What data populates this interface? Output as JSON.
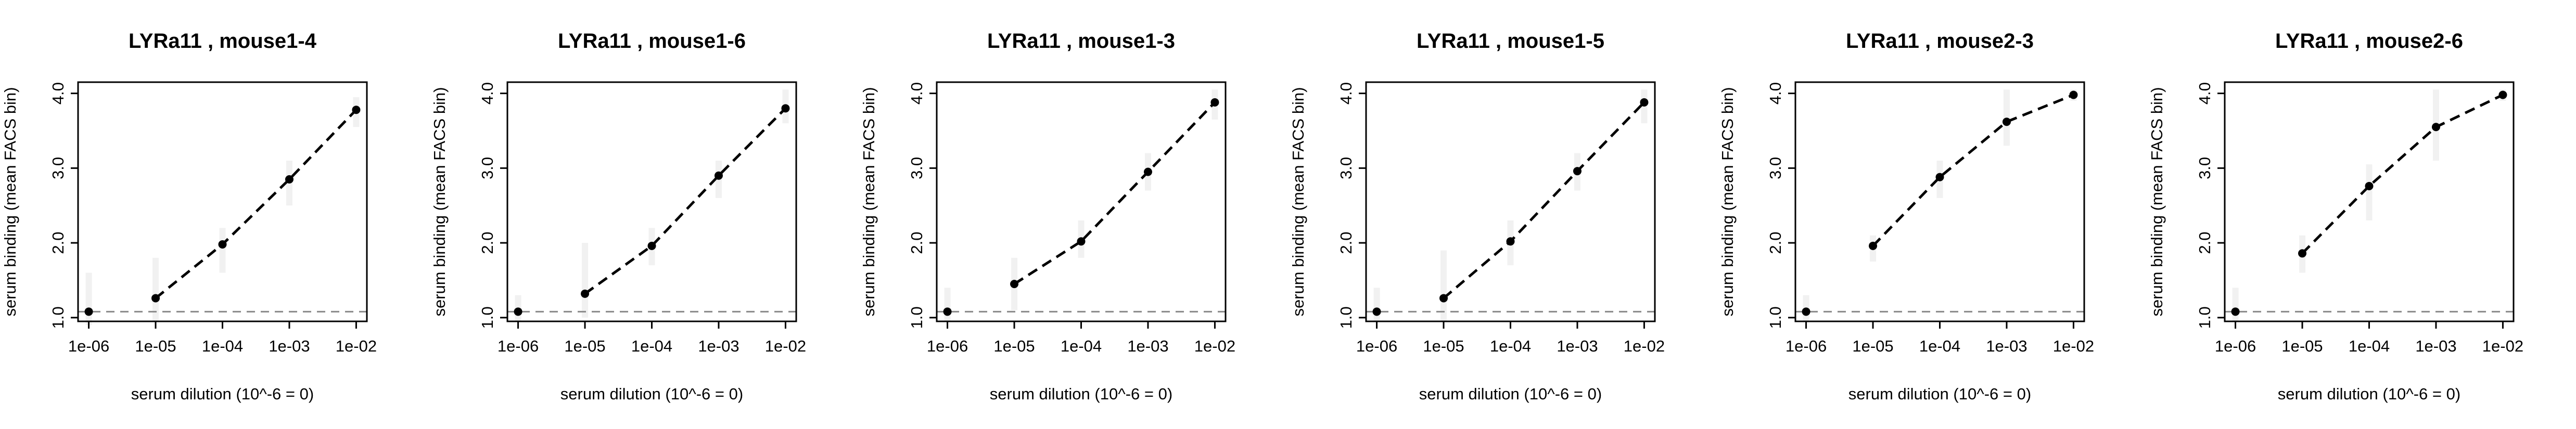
{
  "chart_data": [
    {
      "type": "scatter",
      "title": "LYRa11 , mouse1-4",
      "xlabel": "serum dilution (10^-6 = 0)",
      "ylabel": "serum binding (mean FACS bin)",
      "x": [
        1e-06,
        1e-05,
        0.0001,
        0.001,
        0.01
      ],
      "x_tick_labels": [
        "1e-06",
        "1e-05",
        "1e-04",
        "1e-03",
        "1e-02"
      ],
      "x_scale": "log",
      "y_ticks": [
        "1.0",
        "2.0",
        "3.0",
        "4.0"
      ],
      "ylim": [
        0.95,
        4.15
      ],
      "baseline": 1.08,
      "series": [
        {
          "values": [
            1.08,
            1.26,
            1.98,
            2.85,
            3.78
          ]
        }
      ],
      "replicate_ranges": [
        [
          0.9,
          1.6
        ],
        [
          0.95,
          1.8
        ],
        [
          1.6,
          2.2
        ],
        [
          2.5,
          3.1
        ],
        [
          3.55,
          3.95
        ]
      ],
      "grid": false
    },
    {
      "type": "scatter",
      "title": "LYRa11 , mouse1-6",
      "xlabel": "serum dilution (10^-6 = 0)",
      "ylabel": "serum binding (mean FACS bin)",
      "x": [
        1e-06,
        1e-05,
        0.0001,
        0.001,
        0.01
      ],
      "x_tick_labels": [
        "1e-06",
        "1e-05",
        "1e-04",
        "1e-03",
        "1e-02"
      ],
      "x_scale": "log",
      "y_ticks": [
        "1.0",
        "2.0",
        "3.0",
        "4.0"
      ],
      "ylim": [
        0.95,
        4.15
      ],
      "baseline": 1.08,
      "series": [
        {
          "values": [
            1.08,
            1.32,
            1.96,
            2.9,
            3.8
          ]
        }
      ],
      "replicate_ranges": [
        [
          0.95,
          1.3
        ],
        [
          1.0,
          2.0
        ],
        [
          1.7,
          2.2
        ],
        [
          2.6,
          3.1
        ],
        [
          3.6,
          4.05
        ]
      ],
      "grid": false
    },
    {
      "type": "scatter",
      "title": "LYRa11 , mouse1-3",
      "xlabel": "serum dilution (10^-6 = 0)",
      "ylabel": "serum binding (mean FACS bin)",
      "x": [
        1e-06,
        1e-05,
        0.0001,
        0.001,
        0.01
      ],
      "x_tick_labels": [
        "1e-06",
        "1e-05",
        "1e-04",
        "1e-03",
        "1e-02"
      ],
      "x_scale": "log",
      "y_ticks": [
        "1.0",
        "2.0",
        "3.0",
        "4.0"
      ],
      "ylim": [
        0.95,
        4.15
      ],
      "baseline": 1.08,
      "series": [
        {
          "values": [
            1.08,
            1.45,
            2.02,
            2.95,
            3.88
          ]
        }
      ],
      "replicate_ranges": [
        [
          0.95,
          1.4
        ],
        [
          1.1,
          1.8
        ],
        [
          1.8,
          2.3
        ],
        [
          2.7,
          3.2
        ],
        [
          3.65,
          4.05
        ]
      ],
      "grid": false
    },
    {
      "type": "scatter",
      "title": "LYRa11 , mouse1-5",
      "xlabel": "serum dilution (10^-6 = 0)",
      "ylabel": "serum binding (mean FACS bin)",
      "x": [
        1e-06,
        1e-05,
        0.0001,
        0.001,
        0.01
      ],
      "x_tick_labels": [
        "1e-06",
        "1e-05",
        "1e-04",
        "1e-03",
        "1e-02"
      ],
      "x_scale": "log",
      "y_ticks": [
        "1.0",
        "2.0",
        "3.0",
        "4.0"
      ],
      "ylim": [
        0.95,
        4.15
      ],
      "baseline": 1.08,
      "series": [
        {
          "values": [
            1.08,
            1.26,
            2.02,
            2.96,
            3.88
          ]
        }
      ],
      "replicate_ranges": [
        [
          0.95,
          1.4
        ],
        [
          0.95,
          1.9
        ],
        [
          1.7,
          2.3
        ],
        [
          2.7,
          3.2
        ],
        [
          3.6,
          4.05
        ]
      ],
      "grid": false
    },
    {
      "type": "scatter",
      "title": "LYRa11 , mouse2-3",
      "xlabel": "serum dilution (10^-6 = 0)",
      "ylabel": "serum binding (mean FACS bin)",
      "x": [
        1e-06,
        1e-05,
        0.0001,
        0.001,
        0.01
      ],
      "x_tick_labels": [
        "1e-06",
        "1e-05",
        "1e-04",
        "1e-03",
        "1e-02"
      ],
      "x_scale": "log",
      "y_ticks": [
        "1.0",
        "2.0",
        "3.0",
        "4.0"
      ],
      "ylim": [
        0.95,
        4.15
      ],
      "baseline": 1.08,
      "series": [
        {
          "values": [
            1.08,
            1.96,
            2.88,
            3.62,
            3.98
          ]
        }
      ],
      "replicate_ranges": [
        [
          0.95,
          1.3
        ],
        [
          1.75,
          2.1
        ],
        [
          2.6,
          3.1
        ],
        [
          3.3,
          4.05
        ],
        [
          3.9,
          4.05
        ]
      ],
      "grid": false
    },
    {
      "type": "scatter",
      "title": "LYRa11 , mouse2-6",
      "xlabel": "serum dilution (10^-6 = 0)",
      "ylabel": "serum binding (mean FACS bin)",
      "x": [
        1e-06,
        1e-05,
        0.0001,
        0.001,
        0.01
      ],
      "x_tick_labels": [
        "1e-06",
        "1e-05",
        "1e-04",
        "1e-03",
        "1e-02"
      ],
      "x_scale": "log",
      "y_ticks": [
        "1.0",
        "2.0",
        "3.0",
        "4.0"
      ],
      "ylim": [
        0.95,
        4.15
      ],
      "baseline": 1.08,
      "series": [
        {
          "values": [
            1.08,
            1.86,
            2.76,
            3.55,
            3.98
          ]
        }
      ],
      "replicate_ranges": [
        [
          0.95,
          1.4
        ],
        [
          1.6,
          2.1
        ],
        [
          2.3,
          3.05
        ],
        [
          3.1,
          4.05
        ],
        [
          3.9,
          4.05
        ]
      ],
      "grid": false
    }
  ]
}
